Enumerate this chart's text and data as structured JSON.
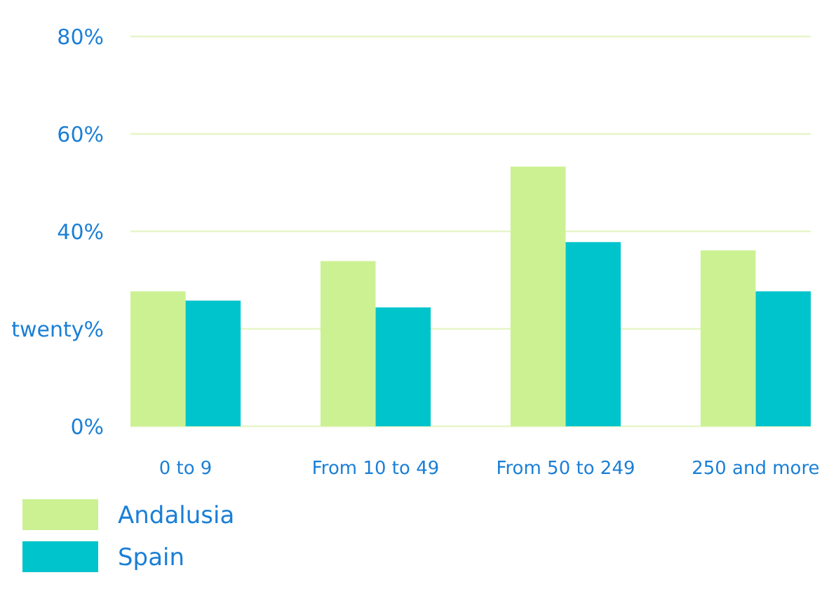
{
  "chart_data": {
    "type": "bar",
    "categories": [
      "0 to 9",
      "From 10 to 49",
      "From 50 to 249",
      "250 and more"
    ],
    "series": [
      {
        "name": "Andalusia",
        "color": "#ccf193",
        "values": [
          27.7,
          33.9,
          53.3,
          36.1
        ]
      },
      {
        "name": "Spain",
        "color": "#00c4cc",
        "values": [
          25.8,
          24.4,
          37.8,
          27.7
        ]
      }
    ],
    "ylim": [
      0,
      80
    ],
    "yticks": [
      {
        "value": 0,
        "label": "0%"
      },
      {
        "value": 20,
        "label": "twenty%"
      },
      {
        "value": 40,
        "label": "40%"
      },
      {
        "value": 60,
        "label": "60%"
      },
      {
        "value": 80,
        "label": "80%"
      }
    ],
    "grid": "y",
    "legend": "bottom left"
  }
}
